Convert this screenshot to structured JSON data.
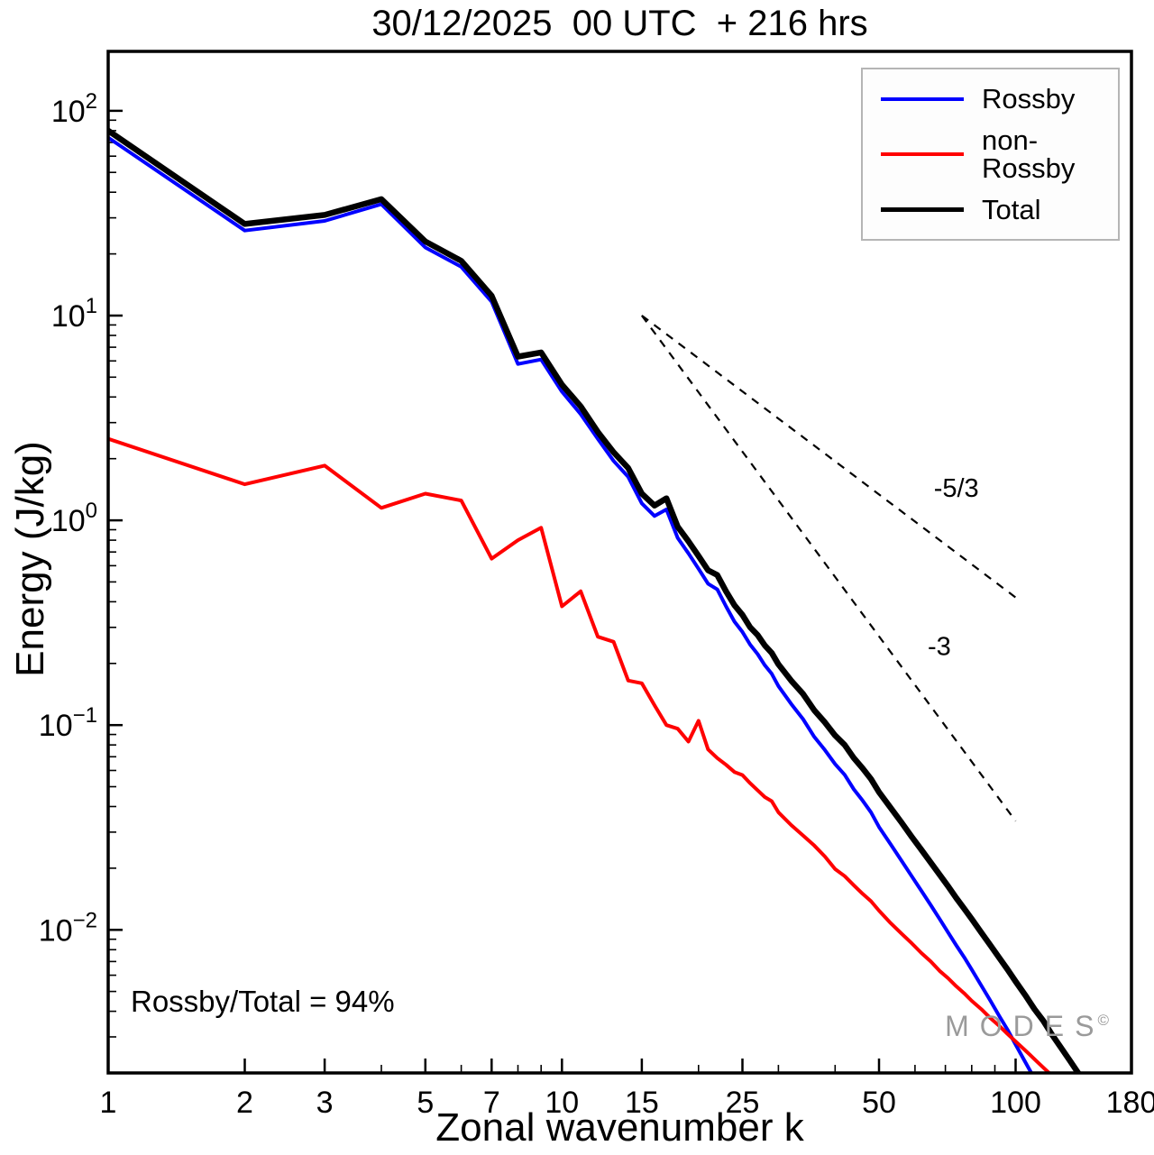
{
  "title": "30/12/2025  00 UTC  + 216 hrs",
  "axes": {
    "x": {
      "label": "Zonal wavenumber k",
      "scale": "log",
      "min": 1,
      "max": 180,
      "ticks": [
        1,
        2,
        3,
        5,
        7,
        10,
        15,
        25,
        50,
        100,
        180
      ]
    },
    "y": {
      "label": "Energy (J/kg)",
      "scale": "log",
      "min": 0.002,
      "max": 195,
      "tick_exponents": [
        -2,
        -1,
        0,
        1,
        2
      ]
    }
  },
  "legend": {
    "position": "top-right",
    "items": [
      {
        "label": "Rossby",
        "color": "#0000ff"
      },
      {
        "label": "non-Rossby",
        "color": "#ff0000"
      },
      {
        "label": "Total",
        "color": "#000000"
      }
    ]
  },
  "annotation": "Rossby/Total = 94%",
  "watermark": {
    "text": "MODES",
    "symbol": "©"
  },
  "chart_data": {
    "type": "line",
    "title": "30/12/2025  00 UTC  + 216 hrs",
    "xlabel": "Zonal wavenumber k",
    "ylabel": "Energy (J/kg)",
    "xscale": "log",
    "yscale": "log",
    "xlim": [
      1,
      180
    ],
    "ylim": [
      0.002,
      195
    ],
    "grid": "off",
    "legend_position": "top-right",
    "series": [
      {
        "name": "Rossby",
        "color": "#0000ff",
        "width": 4,
        "k": [
          1,
          2,
          3,
          4,
          5,
          6,
          7,
          8,
          9,
          10,
          11,
          12,
          13,
          14,
          15,
          16,
          17,
          18,
          19,
          20,
          21,
          22,
          23,
          24,
          25,
          26,
          27,
          28,
          29,
          30,
          32,
          34,
          36,
          38,
          40,
          42,
          44,
          46,
          48,
          50,
          53,
          56,
          59,
          62,
          65,
          68,
          71,
          74,
          77,
          80,
          84,
          88,
          92,
          96,
          100,
          104,
          108,
          112
        ],
        "E": [
          74,
          26,
          29,
          35,
          21.5,
          17.3,
          11.7,
          5.8,
          6.1,
          4.25,
          3.3,
          2.5,
          1.95,
          1.63,
          1.21,
          1.05,
          1.13,
          0.82,
          0.69,
          0.58,
          0.49,
          0.46,
          0.38,
          0.32,
          0.285,
          0.247,
          0.222,
          0.196,
          0.178,
          0.155,
          0.127,
          0.107,
          0.0875,
          0.0755,
          0.0645,
          0.0572,
          0.0485,
          0.0428,
          0.0375,
          0.0318,
          0.0262,
          0.0218,
          0.0183,
          0.0155,
          0.0132,
          0.0113,
          0.0097,
          0.0084,
          0.00735,
          0.0064,
          0.00535,
          0.0045,
          0.0038,
          0.00325,
          0.00275,
          0.00235,
          0.00202,
          0.00175
        ]
      },
      {
        "name": "non-Rossby",
        "color": "#ff0000",
        "width": 4,
        "k": [
          1,
          2,
          3,
          4,
          5,
          6,
          7,
          8,
          9,
          10,
          11,
          12,
          13,
          14,
          15,
          16,
          17,
          18,
          19,
          20,
          21,
          22,
          23,
          24,
          25,
          26,
          27,
          28,
          29,
          30,
          32,
          34,
          36,
          38,
          40,
          42,
          44,
          46,
          48,
          50,
          53,
          56,
          59,
          62,
          65,
          68,
          71,
          74,
          77,
          80,
          84,
          88,
          92,
          96,
          100,
          104,
          108,
          112,
          116,
          120
        ],
        "E": [
          2.5,
          1.5,
          1.85,
          1.15,
          1.35,
          1.25,
          0.65,
          0.8,
          0.92,
          0.38,
          0.45,
          0.27,
          0.255,
          0.165,
          0.16,
          0.125,
          0.1,
          0.096,
          0.083,
          0.105,
          0.076,
          0.069,
          0.064,
          0.059,
          0.057,
          0.052,
          0.048,
          0.0445,
          0.0425,
          0.0375,
          0.0325,
          0.0289,
          0.0258,
          0.0228,
          0.0198,
          0.0183,
          0.0165,
          0.015,
          0.0138,
          0.0124,
          0.0108,
          0.0096,
          0.0086,
          0.0077,
          0.007,
          0.0063,
          0.0058,
          0.0053,
          0.0049,
          0.0045,
          0.0041,
          0.0037,
          0.0034,
          0.0031,
          0.00285,
          0.00263,
          0.00243,
          0.00225,
          0.00209,
          0.00195
        ]
      },
      {
        "name": "Total",
        "color": "#000000",
        "width": 6.5,
        "k": [
          1,
          2,
          3,
          4,
          5,
          6,
          7,
          8,
          9,
          10,
          11,
          12,
          13,
          14,
          15,
          16,
          17,
          18,
          19,
          20,
          21,
          22,
          23,
          24,
          25,
          26,
          27,
          28,
          29,
          30,
          32,
          34,
          36,
          38,
          40,
          42,
          44,
          46,
          48,
          50,
          53,
          56,
          59,
          62,
          65,
          68,
          71,
          74,
          77,
          80,
          84,
          88,
          92,
          96,
          100,
          105,
          110,
          115,
          120,
          126,
          132,
          138,
          144,
          150,
          158
        ],
        "E": [
          80,
          28,
          31,
          37,
          23,
          18.5,
          12.5,
          6.3,
          6.6,
          4.6,
          3.6,
          2.7,
          2.15,
          1.8,
          1.35,
          1.18,
          1.28,
          0.93,
          0.79,
          0.67,
          0.57,
          0.54,
          0.45,
          0.385,
          0.345,
          0.3,
          0.275,
          0.245,
          0.225,
          0.198,
          0.165,
          0.142,
          0.118,
          0.103,
          0.089,
          0.08,
          0.069,
          0.0615,
          0.0545,
          0.047,
          0.0395,
          0.0335,
          0.0285,
          0.0246,
          0.0213,
          0.0186,
          0.0163,
          0.0143,
          0.0127,
          0.0113,
          0.0097,
          0.0084,
          0.0073,
          0.0064,
          0.0056,
          0.0048,
          0.0041,
          0.0036,
          0.0031,
          0.00265,
          0.00228,
          0.00197,
          0.00171,
          0.00149,
          0.00124
        ]
      }
    ],
    "reference_lines": [
      {
        "label": "-5/3",
        "slope": -1.667,
        "k": [
          15,
          100
        ],
        "E": [
          10,
          0.42
        ],
        "label_pos": {
          "k": 66,
          "E": 1.3
        }
      },
      {
        "label": "-3",
        "slope": -3,
        "k": [
          15,
          100
        ],
        "E": [
          10,
          0.034
        ],
        "label_pos": {
          "k": 64,
          "E": 0.22
        }
      }
    ]
  }
}
